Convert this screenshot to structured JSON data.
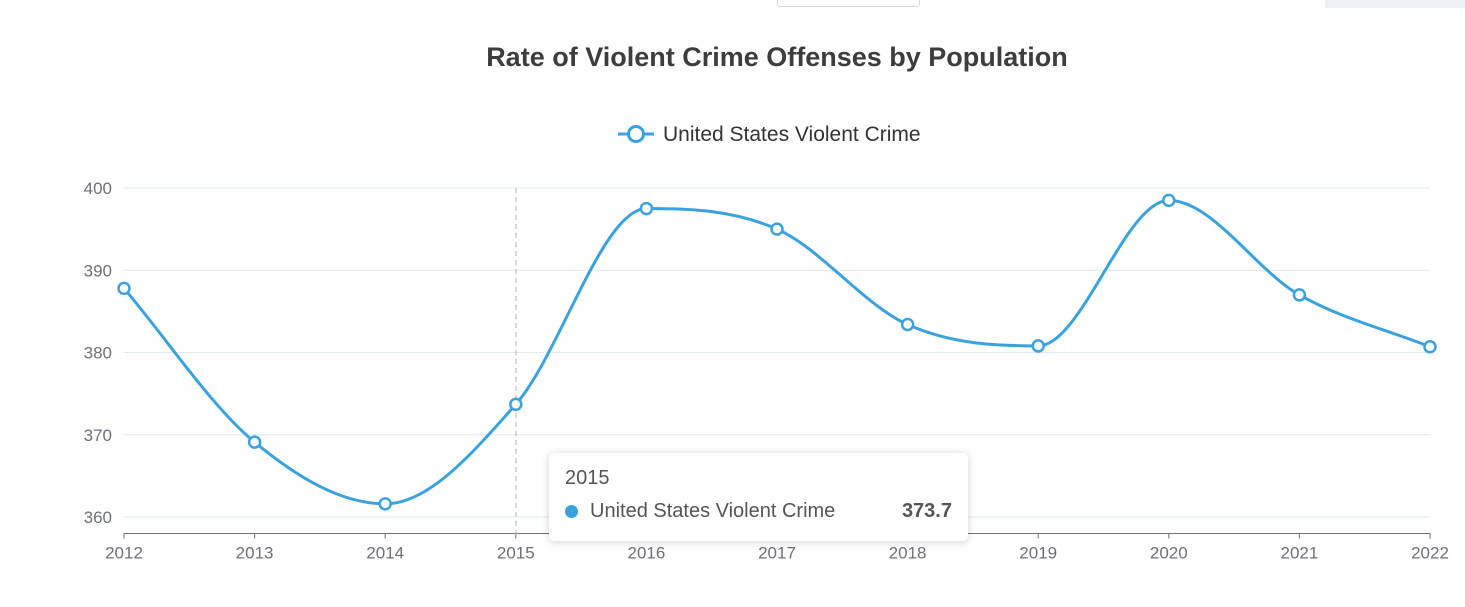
{
  "chart_data": {
    "type": "line",
    "title": "Rate of Violent Crime Offenses by Population",
    "x": [
      "2012",
      "2013",
      "2014",
      "2015",
      "2016",
      "2017",
      "2018",
      "2019",
      "2020",
      "2021",
      "2022"
    ],
    "series": [
      {
        "name": "United States Violent Crime",
        "values": [
          387.8,
          369.1,
          361.6,
          373.7,
          397.5,
          395.0,
          383.4,
          380.8,
          398.5,
          387.0,
          380.7
        ],
        "color": "#3ba2e0"
      }
    ],
    "yticks": [
      360,
      370,
      380,
      390,
      400
    ],
    "ylim": [
      358,
      400
    ],
    "grid": true,
    "legend": "top-center",
    "smooth": true
  },
  "tooltip": {
    "title": "2015",
    "series_name": "United States Violent Crime",
    "value": "373.7"
  }
}
